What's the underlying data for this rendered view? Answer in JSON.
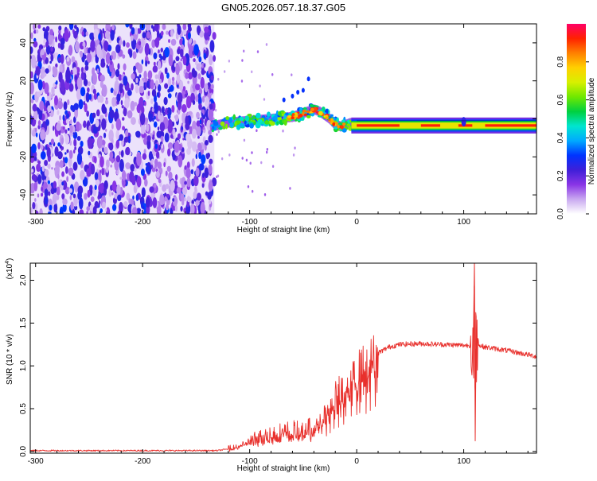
{
  "title": "GN05.2026.057.18.37.G05",
  "chart_data": [
    {
      "type": "heatmap",
      "xlabel": "Height of straight line (km)",
      "ylabel": "Frequency (Hz)",
      "xlim": [
        -305,
        168
      ],
      "ylim": [
        -50,
        50
      ],
      "x_ticks": [
        -300,
        -200,
        -100,
        0,
        100
      ],
      "x_tick_labels": [
        "-300",
        "-200",
        "-100",
        "0",
        "100"
      ],
      "y_ticks": [
        -40,
        -20,
        0,
        20,
        40
      ],
      "y_tick_labels": [
        "-40",
        "-20",
        "0",
        "20",
        "40"
      ],
      "noise_region_x": [
        -305,
        -133
      ],
      "ridge": {
        "x": [
          -135,
          -120,
          -100,
          -80,
          -60,
          -50,
          -45,
          -40,
          -35,
          -30,
          -25,
          -20,
          -15,
          -10,
          -5,
          0,
          20,
          40,
          60,
          80,
          90,
          100,
          110,
          130,
          150,
          168
        ],
        "freq": [
          -4,
          -2,
          -1,
          0,
          1,
          3,
          4,
          5,
          4,
          2,
          0,
          -3,
          -4,
          -3,
          -2,
          -3,
          -3,
          -3,
          -4,
          -4,
          -4,
          -4,
          -4,
          -4,
          -4,
          -4
        ]
      },
      "grid": false
    },
    {
      "type": "line",
      "xlabel": "Height of straight line (km)",
      "ylabel": "SNR (10 * v/v)",
      "y_scale_label": "(x10",
      "y_scale_exp": "4",
      "y_scale_close": ")",
      "xlim": [
        -305,
        168
      ],
      "ylim": [
        -0.02,
        2.2
      ],
      "x_ticks": [
        -300,
        -200,
        -100,
        0,
        100
      ],
      "x_tick_labels": [
        "-300",
        "-200",
        "-100",
        "0",
        "100"
      ],
      "y_ticks": [
        0.0,
        0.5,
        1.0,
        1.5,
        2.0
      ],
      "y_tick_labels": [
        "0.0",
        "0.5",
        "1.0",
        "1.5",
        "2.0"
      ],
      "series_color": "#e8302c",
      "envelope": {
        "x": [
          -305,
          -130,
          -115,
          -100,
          -80,
          -60,
          -50,
          -40,
          -30,
          -20,
          -10,
          0,
          10,
          20,
          30,
          40,
          60,
          80,
          100,
          105,
          110,
          120,
          140,
          168
        ],
        "y": [
          0.01,
          0.01,
          0.04,
          0.12,
          0.2,
          0.25,
          0.22,
          0.3,
          0.42,
          0.6,
          0.75,
          0.9,
          1.05,
          1.15,
          1.22,
          1.25,
          1.26,
          1.25,
          1.24,
          1.24,
          1.25,
          1.22,
          1.18,
          1.11
        ]
      },
      "spike": {
        "x": 110,
        "max": 2.2,
        "min": 0.12
      },
      "grid": false
    }
  ],
  "colorbar": {
    "label": "Normalized spectral amplitude",
    "ticks": [
      0.0,
      0.2,
      0.4,
      0.6,
      0.8
    ],
    "tick_labels": [
      "0.0",
      "0.2",
      "0.4",
      "0.6",
      "0.8"
    ],
    "range": [
      0,
      1
    ],
    "colors": [
      "#ffffff",
      "#c9a9f0",
      "#8a35e6",
      "#3f1fd8",
      "#0033ff",
      "#00aaff",
      "#00e5d0",
      "#00d040",
      "#6fe800",
      "#d8f000",
      "#ffd000",
      "#ff8000",
      "#ff2200",
      "#ff0066"
    ]
  }
}
